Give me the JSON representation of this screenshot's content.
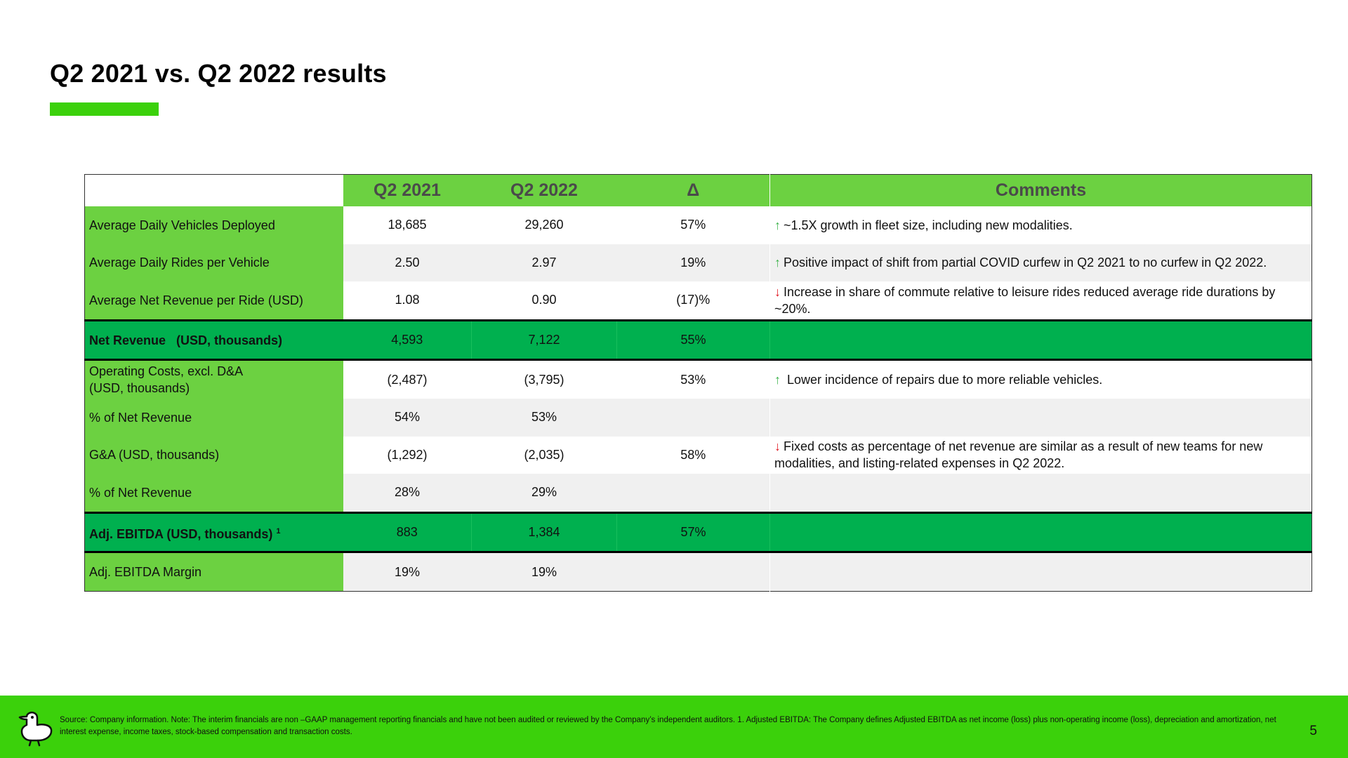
{
  "slide": {
    "title": "Q2 2021 vs. Q2 2022 results",
    "page_number": "5",
    "accent_color": "#3bd10b"
  },
  "table": {
    "headers": [
      "Q2 2021",
      "Q2 2022",
      "Δ",
      "Comments"
    ],
    "rows": [
      {
        "label": "Average Daily Vehicles Deployed",
        "q2_2021": "18,685",
        "q2_2022": "29,260",
        "delta": "57%",
        "arrow": "↑",
        "comment": "~1.5X growth in fleet size, including new modalities."
      },
      {
        "label": "Average Daily Rides per Vehicle",
        "q2_2021": "2.50",
        "q2_2022": "2.97",
        "delta": "19%",
        "arrow": "↑",
        "comment": "Positive impact of shift from partial COVID curfew in Q2 2021 to no curfew in Q2 2022."
      },
      {
        "label": "Average Net Revenue per Ride (USD)",
        "q2_2021": "1.08",
        "q2_2022": "0.90",
        "delta": "(17)%",
        "arrow": "↓",
        "comment": "Increase in share of commute relative to leisure rides reduced average ride durations by ~20%."
      },
      {
        "label": "Net Revenue   (USD, thousands)",
        "q2_2021": "4,593",
        "q2_2022": "7,122",
        "delta": "55%",
        "arrow": "",
        "comment": ""
      },
      {
        "label_line1": "Operating Costs, excl. D&A",
        "label_line2": "(USD, thousands)",
        "q2_2021": "(2,487)",
        "q2_2022": "(3,795)",
        "delta": "53%",
        "arrow": "↑",
        "comment": " Lower incidence of repairs due to more reliable vehicles."
      },
      {
        "label": "% of Net Revenue",
        "q2_2021": "54%",
        "q2_2022": "53%",
        "delta": "",
        "arrow": "",
        "comment": ""
      },
      {
        "label": "G&A (USD, thousands)",
        "q2_2021": "(1,292)",
        "q2_2022": "(2,035)",
        "delta": "58%",
        "arrow": "↓",
        "comment": "Fixed costs as percentage of net revenue are similar as a result of new teams for new modalities, and listing-related expenses in Q2 2022."
      },
      {
        "label": "% of Net Revenue",
        "q2_2021": "28%",
        "q2_2022": "29%",
        "delta": "",
        "arrow": "",
        "comment": ""
      },
      {
        "label": "Adj. EBITDA (USD, thousands)",
        "label_sup": "1",
        "q2_2021": "883",
        "q2_2022": "1,384",
        "delta": "57%",
        "arrow": "",
        "comment": ""
      },
      {
        "label": "Adj. EBITDA Margin",
        "q2_2021": "19%",
        "q2_2022": "19%",
        "delta": "",
        "arrow": "",
        "comment": ""
      }
    ]
  },
  "footer": {
    "source_note": "Source: Company information. Note: The interim financials are non –GAAP management reporting financials and have not been audited or reviewed by the Company’s independent auditors. 1. Adjusted EBITDA: The Company defines Adjusted EBITDA as net income (loss) plus non-operating income (loss), depreciation and amortization, net interest expense, income taxes, stock-based compensation and transaction costs.",
    "logo_icon": "duck-mascot-icon"
  }
}
